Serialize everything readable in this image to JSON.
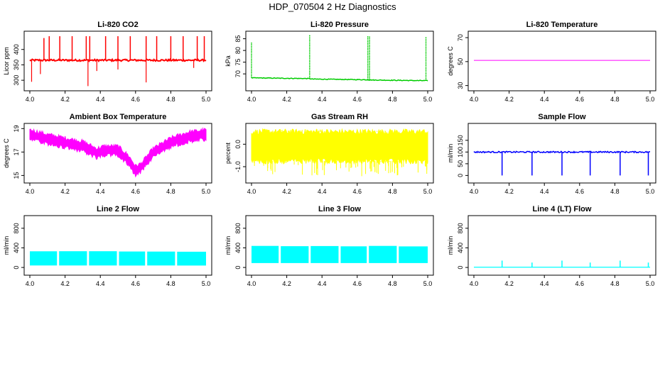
{
  "page_title": "HDP_070504 2 Hz Diagnostics",
  "chart_data": [
    {
      "type": "line",
      "title": "Li-820 CO2",
      "xlabel": "",
      "ylabel": "Licor ppm",
      "xlim": [
        4.0,
        5.0
      ],
      "ylim": [
        275,
        450
      ],
      "xticks": [
        4.0,
        4.2,
        4.4,
        4.6,
        4.8,
        5.0
      ],
      "xtick_labels": [
        "4.0",
        "4.2",
        "4.4",
        "4.6",
        "4.8",
        "5.0"
      ],
      "yticks": [
        300,
        350,
        400
      ],
      "ytick_labels": [
        "300",
        "350",
        "400"
      ],
      "color": "#ff0000",
      "series": [
        {
          "name": "CO2",
          "baseline": 365,
          "noise": 3,
          "spikes_up": [
            [
              4.08,
              437
            ],
            [
              4.11,
              443
            ],
            [
              4.17,
              443
            ],
            [
              4.24,
              443
            ],
            [
              4.32,
              443
            ],
            [
              4.34,
              443
            ],
            [
              4.43,
              443
            ],
            [
              4.5,
              443
            ],
            [
              4.57,
              443
            ],
            [
              4.66,
              443
            ],
            [
              4.72,
              443
            ],
            [
              4.8,
              443
            ],
            [
              4.87,
              443
            ],
            [
              4.95,
              443
            ],
            [
              4.99,
              443
            ]
          ],
          "spikes_down": [
            [
              4.01,
              295
            ],
            [
              4.06,
              320
            ],
            [
              4.33,
              281
            ],
            [
              4.38,
              330
            ],
            [
              4.66,
              293
            ],
            [
              4.5,
              335
            ],
            [
              4.93,
              340
            ]
          ]
        }
      ]
    },
    {
      "type": "line",
      "title": "Li-820 Pressure",
      "xlabel": "",
      "ylabel": "kPa",
      "xlim": [
        4.0,
        5.0
      ],
      "ylim": [
        64,
        87
      ],
      "xticks": [
        4.0,
        4.2,
        4.4,
        4.6,
        4.8,
        5.0
      ],
      "xtick_labels": [
        "4.0",
        "4.2",
        "4.4",
        "4.6",
        "4.8",
        "5.0"
      ],
      "yticks": [
        70,
        75,
        80,
        85
      ],
      "ytick_labels": [
        "70",
        "75",
        "80",
        "85"
      ],
      "color": "#00cc00",
      "series": [
        {
          "name": "Pressure",
          "trend": [
            [
              4.0,
              68.3
            ],
            [
              4.33,
              68.0
            ],
            [
              4.34,
              67.8
            ],
            [
              4.66,
              67.5
            ],
            [
              4.67,
              67.4
            ],
            [
              5.0,
              67.1
            ]
          ],
          "spikes_up": [
            [
              4.0,
              83.5
            ],
            [
              4.33,
              86.5
            ],
            [
              4.66,
              86.2
            ],
            [
              4.67,
              86.0
            ],
            [
              4.99,
              85.8
            ]
          ]
        }
      ]
    },
    {
      "type": "line",
      "title": "Li-820 Temperature",
      "xlabel": "",
      "ylabel": "degrees C",
      "xlim": [
        4.0,
        5.0
      ],
      "ylim": [
        28,
        73
      ],
      "xticks": [
        4.0,
        4.2,
        4.4,
        4.6,
        4.8,
        5.0
      ],
      "xtick_labels": [
        "4.0",
        "4.2",
        "4.4",
        "4.6",
        "4.8",
        "5.0"
      ],
      "yticks": [
        30,
        50,
        70
      ],
      "ytick_labels": [
        "30",
        "50",
        "70"
      ],
      "color": "#ff00ff",
      "series": [
        {
          "name": "Temperature",
          "x": [
            4.0,
            5.0
          ],
          "y": [
            51,
            51
          ]
        }
      ]
    },
    {
      "type": "area",
      "title": "Ambient Box Temperature",
      "xlabel": "",
      "ylabel": "degrees C",
      "xlim": [
        4.0,
        5.0
      ],
      "ylim": [
        14.6,
        19.2
      ],
      "xticks": [
        4.0,
        4.2,
        4.4,
        4.6,
        4.8,
        5.0
      ],
      "xtick_labels": [
        "4.0",
        "4.2",
        "4.4",
        "4.6",
        "4.8",
        "5.0"
      ],
      "yticks": [
        15,
        17,
        19
      ],
      "ytick_labels": [
        "15",
        "17",
        "19"
      ],
      "color": "#ff00ff",
      "series": [
        {
          "name": "Box temp",
          "upper": [
            [
              4.0,
              18.9
            ],
            [
              4.1,
              18.5
            ],
            [
              4.2,
              18.2
            ],
            [
              4.3,
              17.9
            ],
            [
              4.38,
              17.3
            ],
            [
              4.42,
              17.5
            ],
            [
              4.5,
              17.5
            ],
            [
              4.56,
              16.7
            ],
            [
              4.6,
              15.8
            ],
            [
              4.63,
              16.0
            ],
            [
              4.7,
              17.3
            ],
            [
              4.8,
              18.2
            ],
            [
              4.9,
              18.7
            ],
            [
              5.0,
              18.9
            ]
          ],
          "lower": [
            [
              4.0,
              18.1
            ],
            [
              4.1,
              17.7
            ],
            [
              4.2,
              17.4
            ],
            [
              4.3,
              17.1
            ],
            [
              4.38,
              16.5
            ],
            [
              4.42,
              16.7
            ],
            [
              4.5,
              16.7
            ],
            [
              4.56,
              15.9
            ],
            [
              4.6,
              15.0
            ],
            [
              4.63,
              15.3
            ],
            [
              4.7,
              16.6
            ],
            [
              4.8,
              17.4
            ],
            [
              4.9,
              17.9
            ],
            [
              5.0,
              18.1
            ]
          ]
        }
      ]
    },
    {
      "type": "area",
      "title": "Gas Stream RH",
      "xlabel": "",
      "ylabel": "percent",
      "xlim": [
        4.0,
        5.0
      ],
      "ylim": [
        -1.6,
        0.8
      ],
      "xticks": [
        4.0,
        4.2,
        4.4,
        4.6,
        4.8,
        5.0
      ],
      "xtick_labels": [
        "4.0",
        "4.2",
        "4.4",
        "4.6",
        "4.8",
        "5.0"
      ],
      "yticks": [
        -1.0,
        0.0
      ],
      "ytick_labels": [
        "-1.0",
        "0.0"
      ],
      "color": "#ffff00",
      "series": [
        {
          "name": "RH",
          "upper": [
            [
              4.0,
              0.55
            ],
            [
              5.0,
              0.55
            ]
          ],
          "lower": [
            [
              4.0,
              -0.75
            ],
            [
              5.0,
              -0.75
            ]
          ],
          "spikes_down_min": -1.45
        }
      ]
    },
    {
      "type": "line",
      "title": "Sample Flow",
      "xlabel": "",
      "ylabel": "ml/min",
      "xlim": [
        4.0,
        5.0
      ],
      "ylim": [
        -20,
        210
      ],
      "xticks": [
        4.0,
        4.2,
        4.4,
        4.6,
        4.8,
        5.0
      ],
      "xtick_labels": [
        "4.0",
        "4.2",
        "4.4",
        "4.6",
        "4.8",
        "5.0"
      ],
      "yticks": [
        0,
        50,
        100,
        150
      ],
      "ytick_labels": [
        "0",
        "50",
        "100",
        "150"
      ],
      "color": "#0000ff",
      "series": [
        {
          "name": "Sample flow",
          "baseline": 100,
          "noise": 3,
          "drops": [
            [
              4.16,
              0
            ],
            [
              4.33,
              0
            ],
            [
              4.5,
              0
            ],
            [
              4.66,
              0
            ],
            [
              4.83,
              0
            ],
            [
              4.99,
              0
            ]
          ]
        }
      ]
    },
    {
      "type": "area",
      "title": "Line 2 Flow",
      "xlabel": "",
      "ylabel": "ml/min",
      "xlim": [
        4.0,
        5.0
      ],
      "ylim": [
        -100,
        1000
      ],
      "xticks": [
        4.0,
        4.2,
        4.4,
        4.6,
        4.8,
        5.0
      ],
      "xtick_labels": [
        "4.0",
        "4.2",
        "4.4",
        "4.6",
        "4.8",
        "5.0"
      ],
      "yticks": [
        0,
        400,
        800
      ],
      "ytick_labels": [
        "0",
        "400",
        "800"
      ],
      "color": "#00ffff",
      "series": [
        {
          "name": "Line 2",
          "upper": 330,
          "lower": 40,
          "gaps": [
            4.16,
            4.33,
            4.5,
            4.66,
            4.83
          ]
        }
      ]
    },
    {
      "type": "area",
      "title": "Line 3 Flow",
      "xlabel": "",
      "ylabel": "ml/min",
      "xlim": [
        4.0,
        5.0
      ],
      "ylim": [
        -100,
        1000
      ],
      "xticks": [
        4.0,
        4.2,
        4.4,
        4.6,
        4.8,
        5.0
      ],
      "xtick_labels": [
        "4.0",
        "4.2",
        "4.4",
        "4.6",
        "4.8",
        "5.0"
      ],
      "yticks": [
        0,
        400,
        800
      ],
      "ytick_labels": [
        "0",
        "400",
        "800"
      ],
      "color": "#00ffff",
      "series": [
        {
          "name": "Line 3",
          "upper": 440,
          "lower": 90,
          "gaps": [
            4.16,
            4.33,
            4.5,
            4.66,
            4.83
          ]
        }
      ]
    },
    {
      "type": "line",
      "title": "Line 4 (LT) Flow",
      "xlabel": "",
      "ylabel": "ml/min",
      "xlim": [
        4.0,
        5.0
      ],
      "ylim": [
        -100,
        1000
      ],
      "xticks": [
        4.0,
        4.2,
        4.4,
        4.6,
        4.8,
        5.0
      ],
      "xtick_labels": [
        "4.0",
        "4.2",
        "4.4",
        "4.6",
        "4.8",
        "5.0"
      ],
      "yticks": [
        0,
        400,
        800
      ],
      "ytick_labels": [
        "0",
        "400",
        "800"
      ],
      "color": "#00ffff",
      "series": [
        {
          "name": "Line 4",
          "baseline": 5,
          "spikes_up": [
            [
              4.16,
              140
            ],
            [
              4.33,
              100
            ],
            [
              4.5,
              140
            ],
            [
              4.66,
              100
            ],
            [
              4.83,
              140
            ],
            [
              4.99,
              100
            ]
          ]
        }
      ]
    }
  ]
}
